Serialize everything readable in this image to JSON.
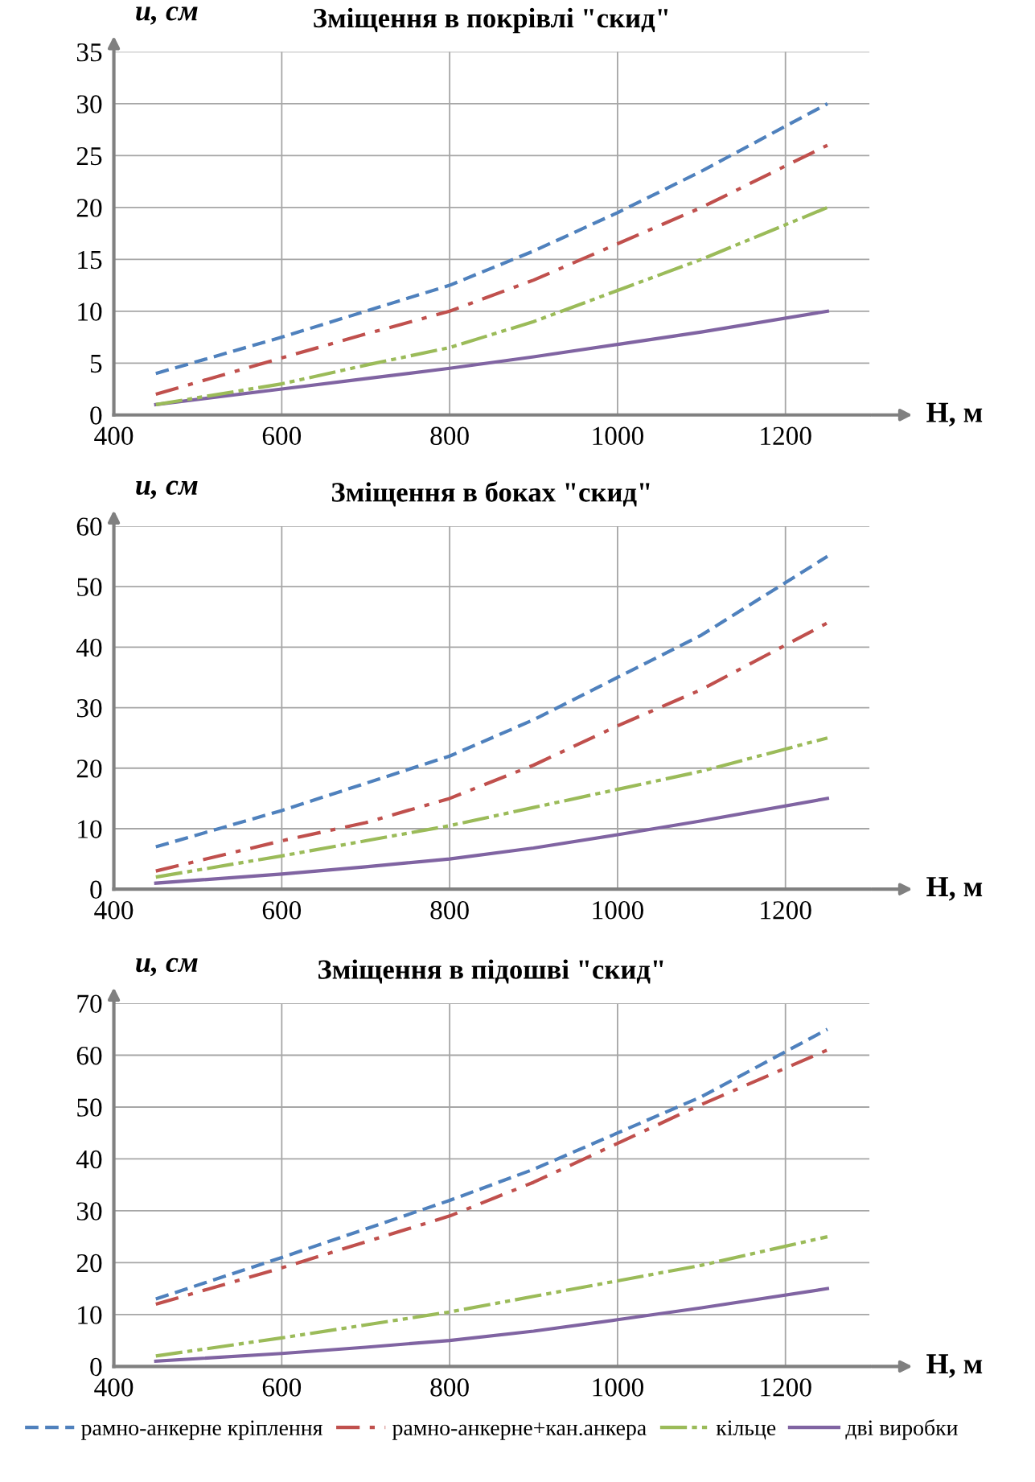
{
  "chart_data": [
    {
      "type": "line",
      "title": "Зміщення в покрівлі \"скид\"",
      "xlabel": "H, м",
      "ylabel": "u, см",
      "xlim": [
        400,
        1300
      ],
      "xticks": [
        400,
        600,
        800,
        1000,
        1200
      ],
      "ylim": [
        0,
        35
      ],
      "yticks": [
        0,
        5,
        10,
        15,
        20,
        25,
        30,
        35
      ],
      "grid": true,
      "marker": "none",
      "x": [
        450,
        600,
        700,
        800,
        900,
        1000,
        1100,
        1250
      ],
      "series": [
        {
          "color": "#4f81bd",
          "line_style": "dashed",
          "values": [
            4,
            7.5,
            10,
            12.5,
            15.8,
            19.5,
            23.5,
            30
          ]
        },
        {
          "color": "#c0504d",
          "line_style": "dashdot",
          "values": [
            2,
            5.5,
            7.8,
            10,
            13,
            16.5,
            20,
            26
          ]
        },
        {
          "color": "#9bbb59",
          "line_style": "dashdotdot",
          "values": [
            1,
            3,
            4.8,
            6.5,
            9,
            12,
            15,
            20
          ]
        },
        {
          "color": "#8064a2",
          "line_style": "solid",
          "values": [
            1,
            2.5,
            3.5,
            4.5,
            5.6,
            6.8,
            8,
            10
          ]
        }
      ]
    },
    {
      "type": "line",
      "title": "Зміщення в боках \"скид\"",
      "xlabel": "H, м",
      "ylabel": "u, см",
      "xlim": [
        400,
        1300
      ],
      "xticks": [
        400,
        600,
        800,
        1000,
        1200
      ],
      "ylim": [
        0,
        60
      ],
      "yticks": [
        0,
        10,
        20,
        30,
        40,
        50,
        60
      ],
      "grid": true,
      "marker": "none",
      "x": [
        450,
        600,
        700,
        800,
        900,
        1000,
        1100,
        1250
      ],
      "series": [
        {
          "color": "#4f81bd",
          "line_style": "dashed",
          "values": [
            7,
            13,
            17.5,
            22,
            28,
            35,
            42,
            55
          ]
        },
        {
          "color": "#c0504d",
          "line_style": "dashdot",
          "values": [
            3,
            8,
            11,
            15,
            20.5,
            27,
            33,
            44
          ]
        },
        {
          "color": "#9bbb59",
          "line_style": "dashdotdot",
          "values": [
            2,
            5.5,
            8,
            10.5,
            13.5,
            16.5,
            19.5,
            25
          ]
        },
        {
          "color": "#8064a2",
          "line_style": "solid",
          "values": [
            1,
            2.5,
            3.7,
            5,
            6.8,
            9,
            11.3,
            15
          ]
        }
      ]
    },
    {
      "type": "line",
      "title": "Зміщення в підошві \"скид\"",
      "xlabel": "H, м",
      "ylabel": "u, см",
      "xlim": [
        400,
        1300
      ],
      "xticks": [
        400,
        600,
        800,
        1000,
        1200
      ],
      "ylim": [
        0,
        70
      ],
      "yticks": [
        0,
        10,
        20,
        30,
        40,
        50,
        60,
        70
      ],
      "grid": true,
      "legend": "bottom",
      "marker": "none",
      "x": [
        450,
        600,
        700,
        800,
        900,
        1000,
        1100,
        1250
      ],
      "series": [
        {
          "name": "рамно-анкерне кріплення",
          "color": "#4f81bd",
          "line_style": "dashed",
          "values": [
            13,
            21,
            26.5,
            32,
            38,
            45,
            52,
            65
          ]
        },
        {
          "name": "рамно-анкерне+кан.анкера",
          "color": "#c0504d",
          "line_style": "dashdot",
          "values": [
            12,
            19,
            24,
            29,
            35.5,
            43,
            50.5,
            61
          ]
        },
        {
          "name": "кільце",
          "color": "#9bbb59",
          "line_style": "dashdotdot",
          "values": [
            2,
            5.5,
            8,
            10.5,
            13.5,
            16.5,
            19.5,
            25
          ]
        },
        {
          "name": "дві виробки",
          "color": "#8064a2",
          "line_style": "solid",
          "values": [
            1,
            2.5,
            3.7,
            5,
            6.8,
            9,
            11.3,
            15
          ]
        }
      ]
    }
  ]
}
